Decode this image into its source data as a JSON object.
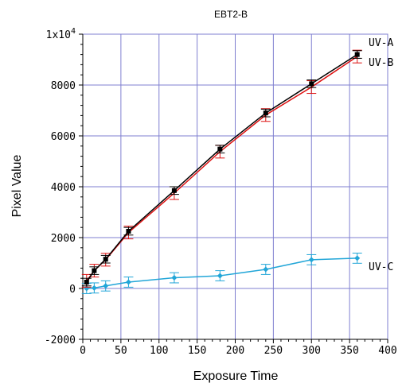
{
  "chart_data": {
    "type": "line",
    "title": "EBT2-B",
    "xlabel": "Exposure Time",
    "ylabel": "Pixel Value",
    "xlim": [
      0,
      400
    ],
    "ylim": [
      -2000,
      10000
    ],
    "xticks": [
      "0",
      "50",
      "100",
      "150",
      "200",
      "250",
      "300",
      "350",
      "400"
    ],
    "yticks": [
      {
        "value": -2000,
        "label": "-2000"
      },
      {
        "value": 0,
        "label": "0"
      },
      {
        "value": 2000,
        "label": "2000"
      },
      {
        "value": 4000,
        "label": "4000"
      },
      {
        "value": 6000,
        "label": "6000"
      },
      {
        "value": 8000,
        "label": "8000"
      },
      {
        "value": 10000,
        "label": "1x10",
        "exponent": "4"
      }
    ],
    "grid": true,
    "x": [
      5,
      15,
      30,
      60,
      120,
      180,
      240,
      300,
      360
    ],
    "series": [
      {
        "name": "UV-A",
        "color": "#000000",
        "marker": "square",
        "values": [
          250,
          700,
          1150,
          2250,
          3850,
          5480,
          6900,
          8050,
          9200
        ],
        "errors": [
          150,
          150,
          150,
          150,
          150,
          150,
          150,
          150,
          150
        ]
      },
      {
        "name": "UV-B",
        "color": "#dd1111",
        "marker": "none",
        "values": [
          300,
          700,
          1130,
          2200,
          3750,
          5380,
          6820,
          7920,
          9120
        ],
        "errors": [
          250,
          250,
          250,
          250,
          250,
          250,
          250,
          250,
          250
        ]
      },
      {
        "name": "UV-C",
        "color": "#22a6d8",
        "marker": "diamond",
        "values": [
          0,
          20,
          100,
          250,
          420,
          500,
          750,
          1130,
          1190
        ],
        "errors": [
          200,
          200,
          200,
          200,
          200,
          200,
          200,
          200,
          200
        ]
      }
    ]
  }
}
